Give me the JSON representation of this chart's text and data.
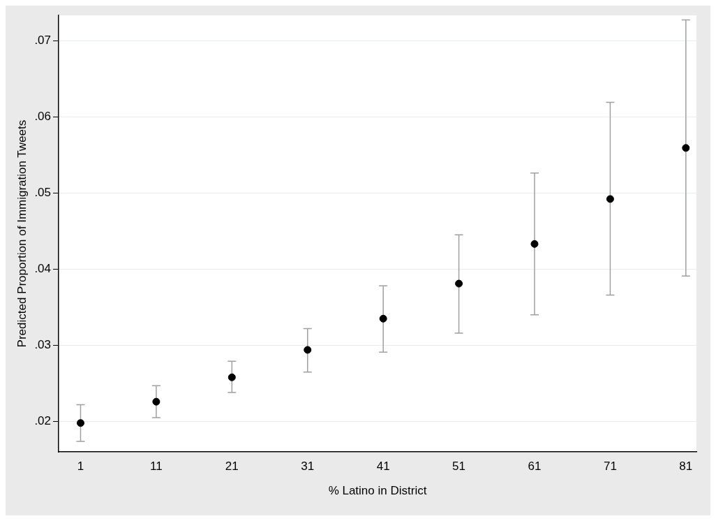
{
  "chart_data": {
    "type": "scatter",
    "xlabel": "% Latino in District",
    "ylabel": "Predicted Proportion of Immigration Tweets",
    "x": [
      1,
      11,
      21,
      31,
      41,
      51,
      61,
      71,
      81
    ],
    "series": [
      {
        "color": "#000000",
        "values": [
          0.0198,
          0.0226,
          0.0258,
          0.0294,
          0.0335,
          0.0381,
          0.0433,
          0.0492,
          0.0559
        ],
        "errors": [
          [
            0.0174,
            0.0222
          ],
          [
            0.0205,
            0.0247
          ],
          [
            0.0238,
            0.0279
          ],
          [
            0.0265,
            0.0322
          ],
          [
            0.0291,
            0.0378
          ],
          [
            0.0316,
            0.0445
          ],
          [
            0.034,
            0.0526
          ],
          [
            0.0366,
            0.0619
          ],
          [
            0.0391,
            0.0727
          ]
        ]
      }
    ],
    "xlim": [
      -1.9,
      82.4
    ],
    "xticks": [
      1,
      11,
      21,
      31,
      41,
      51,
      61,
      71,
      81
    ],
    "ylim": [
      0.016,
      0.0733
    ],
    "yticks": [
      {
        "value": 0.02,
        "label": ".02"
      },
      {
        "value": 0.03,
        "label": ".03"
      },
      {
        "value": 0.04,
        "label": ".04"
      },
      {
        "value": 0.05,
        "label": ".05"
      },
      {
        "value": 0.06,
        "label": ".06"
      },
      {
        "value": 0.07,
        "label": ".07"
      }
    ],
    "grid": "y",
    "marker": "circle",
    "legend": false
  }
}
